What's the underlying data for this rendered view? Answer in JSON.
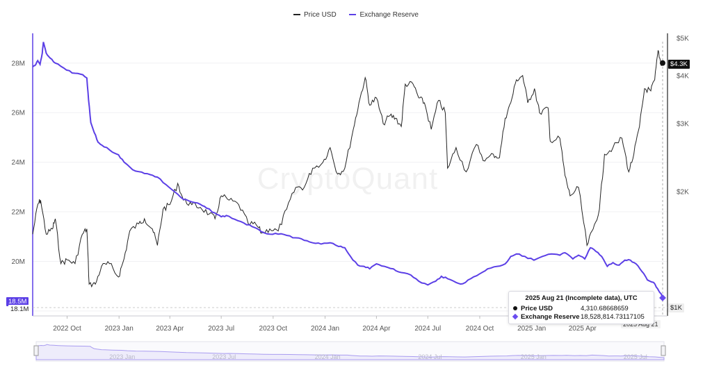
{
  "chart_data": {
    "type": "line",
    "watermark": "CryptoQuant",
    "legend": [
      {
        "name": "Price USD",
        "color": "#222222"
      },
      {
        "name": "Exchange Reserve",
        "color": "#5b3fe6"
      }
    ],
    "x_ticks": [
      "2022 Oct",
      "2023 Jan",
      "2023 Apr",
      "2023 Jul",
      "2023 Oct",
      "2024 Jan",
      "2024 Apr",
      "2024 Jul",
      "2024 Oct",
      "2025 Jan",
      "2025 Apr"
    ],
    "left_axis": {
      "ticks": [
        "18M",
        "20M",
        "22M",
        "24M",
        "26M",
        "28M"
      ],
      "range": [
        17.8,
        29.2
      ],
      "unit": "M"
    },
    "right_axis": {
      "ticks": [
        "$1K",
        "$2K",
        "$3K",
        "$4K",
        "$5K"
      ],
      "scale": "log"
    },
    "series": [
      {
        "name": "Price USD",
        "axis": "right",
        "points": [
          [
            "2022-08-01",
            1550
          ],
          [
            "2022-08-10",
            1850
          ],
          [
            "2022-08-15",
            1900
          ],
          [
            "2022-08-25",
            1550
          ],
          [
            "2022-09-05",
            1600
          ],
          [
            "2022-09-10",
            1700
          ],
          [
            "2022-09-20",
            1300
          ],
          [
            "2022-10-01",
            1330
          ],
          [
            "2022-10-15",
            1300
          ],
          [
            "2022-10-28",
            1550
          ],
          [
            "2022-11-05",
            1600
          ],
          [
            "2022-11-09",
            1150
          ],
          [
            "2022-11-20",
            1150
          ],
          [
            "2022-12-01",
            1280
          ],
          [
            "2022-12-15",
            1300
          ],
          [
            "2022-12-31",
            1200
          ],
          [
            "2023-01-10",
            1340
          ],
          [
            "2023-01-20",
            1580
          ],
          [
            "2023-02-05",
            1650
          ],
          [
            "2023-02-15",
            1700
          ],
          [
            "2023-03-01",
            1600
          ],
          [
            "2023-03-10",
            1450
          ],
          [
            "2023-03-20",
            1800
          ],
          [
            "2023-04-01",
            1850
          ],
          [
            "2023-04-15",
            2100
          ],
          [
            "2023-04-25",
            1900
          ],
          [
            "2023-05-10",
            1850
          ],
          [
            "2023-05-25",
            1820
          ],
          [
            "2023-06-10",
            1750
          ],
          [
            "2023-06-20",
            1700
          ],
          [
            "2023-07-01",
            1950
          ],
          [
            "2023-07-15",
            1900
          ],
          [
            "2023-08-01",
            1850
          ],
          [
            "2023-08-18",
            1650
          ],
          [
            "2023-09-01",
            1640
          ],
          [
            "2023-09-11",
            1560
          ],
          [
            "2023-09-25",
            1600
          ],
          [
            "2023-10-10",
            1580
          ],
          [
            "2023-10-25",
            1800
          ],
          [
            "2023-11-10",
            2050
          ],
          [
            "2023-11-25",
            2050
          ],
          [
            "2023-12-10",
            2300
          ],
          [
            "2023-12-28",
            2380
          ],
          [
            "2024-01-10",
            2600
          ],
          [
            "2024-01-23",
            2220
          ],
          [
            "2024-02-05",
            2300
          ],
          [
            "2024-02-20",
            2900
          ],
          [
            "2024-03-01",
            3400
          ],
          [
            "2024-03-12",
            3950
          ],
          [
            "2024-03-20",
            3350
          ],
          [
            "2024-04-01",
            3500
          ],
          [
            "2024-04-13",
            3000
          ],
          [
            "2024-04-25",
            3150
          ],
          [
            "2024-05-05",
            3100
          ],
          [
            "2024-05-15",
            2950
          ],
          [
            "2024-05-22",
            3800
          ],
          [
            "2024-06-05",
            3800
          ],
          [
            "2024-06-15",
            3500
          ],
          [
            "2024-06-25",
            3400
          ],
          [
            "2024-07-07",
            2900
          ],
          [
            "2024-07-20",
            3450
          ],
          [
            "2024-08-01",
            3200
          ],
          [
            "2024-08-05",
            2300
          ],
          [
            "2024-08-20",
            2600
          ],
          [
            "2024-09-07",
            2250
          ],
          [
            "2024-09-25",
            2650
          ],
          [
            "2024-10-10",
            2400
          ],
          [
            "2024-10-25",
            2500
          ],
          [
            "2024-11-05",
            2450
          ],
          [
            "2024-11-15",
            3100
          ],
          [
            "2024-11-25",
            3400
          ],
          [
            "2024-12-05",
            3900
          ],
          [
            "2024-12-16",
            4000
          ],
          [
            "2024-12-25",
            3400
          ],
          [
            "2025-01-06",
            3700
          ],
          [
            "2025-01-15",
            3200
          ],
          [
            "2025-01-30",
            3300
          ],
          [
            "2025-02-03",
            2700
          ],
          [
            "2025-02-20",
            2750
          ],
          [
            "2025-03-01",
            2200
          ],
          [
            "2025-03-10",
            1950
          ],
          [
            "2025-03-25",
            2050
          ],
          [
            "2025-04-09",
            1450
          ],
          [
            "2025-04-20",
            1600
          ],
          [
            "2025-05-01",
            1800
          ],
          [
            "2025-05-10",
            2500
          ],
          [
            "2025-05-25",
            2600
          ],
          [
            "2025-06-10",
            2750
          ],
          [
            "2025-06-22",
            2250
          ],
          [
            "2025-07-01",
            2500
          ],
          [
            "2025-07-11",
            2950
          ],
          [
            "2025-07-20",
            3700
          ],
          [
            "2025-07-31",
            3650
          ],
          [
            "2025-08-07",
            3900
          ],
          [
            "2025-08-13",
            4650
          ],
          [
            "2025-08-18",
            4300
          ],
          [
            "2025-08-21",
            4310.69
          ]
        ]
      },
      {
        "name": "Exchange Reserve",
        "axis": "left",
        "points": [
          [
            "2022-08-01",
            27.85
          ],
          [
            "2022-08-05",
            27.9
          ],
          [
            "2022-08-10",
            28.1
          ],
          [
            "2022-08-14",
            27.95
          ],
          [
            "2022-08-18",
            28.4
          ],
          [
            "2022-08-20",
            28.85
          ],
          [
            "2022-08-25",
            28.4
          ],
          [
            "2022-09-01",
            28.2
          ],
          [
            "2022-09-10",
            28.0
          ],
          [
            "2022-09-25",
            27.8
          ],
          [
            "2022-10-10",
            27.6
          ],
          [
            "2022-10-25",
            27.55
          ],
          [
            "2022-11-05",
            27.4
          ],
          [
            "2022-11-08",
            26.5
          ],
          [
            "2022-11-12",
            25.6
          ],
          [
            "2022-11-18",
            25.2
          ],
          [
            "2022-11-25",
            24.8
          ],
          [
            "2022-12-01",
            24.7
          ],
          [
            "2022-12-15",
            24.5
          ],
          [
            "2022-12-31",
            24.3
          ],
          [
            "2023-01-10",
            24.0
          ],
          [
            "2023-01-25",
            23.7
          ],
          [
            "2023-02-10",
            23.6
          ],
          [
            "2023-02-25",
            23.5
          ],
          [
            "2023-03-10",
            23.4
          ],
          [
            "2023-03-25",
            23.1
          ],
          [
            "2023-04-10",
            22.8
          ],
          [
            "2023-04-25",
            22.5
          ],
          [
            "2023-05-10",
            22.4
          ],
          [
            "2023-05-25",
            22.3
          ],
          [
            "2023-06-05",
            22.15
          ],
          [
            "2023-06-20",
            21.95
          ],
          [
            "2023-07-01",
            21.8
          ],
          [
            "2023-07-10",
            21.85
          ],
          [
            "2023-07-25",
            21.7
          ],
          [
            "2023-08-10",
            21.55
          ],
          [
            "2023-08-25",
            21.4
          ],
          [
            "2023-09-10",
            21.2
          ],
          [
            "2023-09-25",
            21.1
          ],
          [
            "2023-10-10",
            21.1
          ],
          [
            "2023-10-25",
            21.05
          ],
          [
            "2023-11-10",
            20.95
          ],
          [
            "2023-11-25",
            20.85
          ],
          [
            "2023-12-10",
            20.75
          ],
          [
            "2023-12-25",
            20.7
          ],
          [
            "2024-01-10",
            20.75
          ],
          [
            "2024-01-25",
            20.6
          ],
          [
            "2024-02-05",
            20.55
          ],
          [
            "2024-02-15",
            20.2
          ],
          [
            "2024-02-28",
            19.85
          ],
          [
            "2024-03-10",
            19.8
          ],
          [
            "2024-03-20",
            19.7
          ],
          [
            "2024-04-01",
            19.9
          ],
          [
            "2024-04-15",
            19.8
          ],
          [
            "2024-05-01",
            19.7
          ],
          [
            "2024-05-15",
            19.55
          ],
          [
            "2024-06-01",
            19.45
          ],
          [
            "2024-06-15",
            19.2
          ],
          [
            "2024-07-01",
            19.05
          ],
          [
            "2024-07-15",
            19.2
          ],
          [
            "2024-07-25",
            19.4
          ],
          [
            "2024-08-05",
            19.3
          ],
          [
            "2024-08-20",
            19.15
          ],
          [
            "2024-09-01",
            19.1
          ],
          [
            "2024-09-15",
            19.3
          ],
          [
            "2024-10-01",
            19.5
          ],
          [
            "2024-10-15",
            19.7
          ],
          [
            "2024-11-01",
            19.8
          ],
          [
            "2024-11-15",
            19.9
          ],
          [
            "2024-11-25",
            20.2
          ],
          [
            "2024-12-05",
            20.3
          ],
          [
            "2024-12-20",
            20.2
          ],
          [
            "2025-01-05",
            20.05
          ],
          [
            "2025-01-20",
            20.2
          ],
          [
            "2025-02-05",
            20.3
          ],
          [
            "2025-02-20",
            20.25
          ],
          [
            "2025-03-01",
            20.35
          ],
          [
            "2025-03-15",
            20.1
          ],
          [
            "2025-03-25",
            20.25
          ],
          [
            "2025-04-05",
            20.1
          ],
          [
            "2025-04-15",
            20.55
          ],
          [
            "2025-04-25",
            20.4
          ],
          [
            "2025-05-05",
            20.2
          ],
          [
            "2025-05-15",
            19.8
          ],
          [
            "2025-05-25",
            19.95
          ],
          [
            "2025-06-05",
            19.85
          ],
          [
            "2025-06-15",
            20.05
          ],
          [
            "2025-06-25",
            20.05
          ],
          [
            "2025-07-05",
            19.9
          ],
          [
            "2025-07-15",
            19.6
          ],
          [
            "2025-07-25",
            19.25
          ],
          [
            "2025-08-05",
            19.15
          ],
          [
            "2025-08-12",
            18.9
          ],
          [
            "2025-08-18",
            18.7
          ],
          [
            "2025-08-21",
            18.53
          ]
        ]
      }
    ],
    "tooltip": {
      "date": "2025 Aug 21 (Incomplete data), UTC",
      "rows": [
        {
          "label": "Price USD",
          "value": "4,310.68668659"
        },
        {
          "label": "Exchange Reserve",
          "value": "18,528,814.73117105"
        }
      ]
    },
    "badges": {
      "price_current": "$4.3K",
      "reserve_current": "18.5M",
      "reserve_min": "18.1M",
      "right_bottom": "$1K",
      "date_current": "2025 Aug 21"
    },
    "navigator_ticks": [
      "2023 Jan",
      "2023 Jul",
      "2024 Jan",
      "2024 Jul",
      "2025 Jan",
      "2025 Jul"
    ]
  }
}
